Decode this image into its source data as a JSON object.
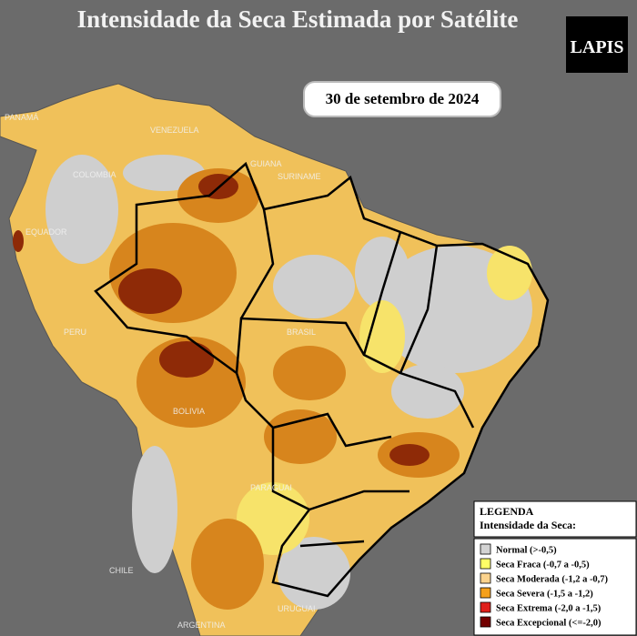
{
  "header": {
    "title": "Intensidade da Seca Estimada por Satélite",
    "date": "30 de setembro de 2024",
    "logo": "LAPIS"
  },
  "map": {
    "labels": [
      "PANAMÁ",
      "VENEZUELA",
      "COLOMBIA",
      "GUIANA",
      "SURINAME",
      "EQUADOR",
      "PERU",
      "BRASIL",
      "BOLIVIA",
      "PARAGUAI",
      "CHILE",
      "URUGUAI",
      "ARGENTINA"
    ]
  },
  "legend": {
    "title": "LEGENDA",
    "subtitle": "Intensidade da Seca:",
    "items": [
      {
        "label": "Normal (>-0,5)",
        "color": "#d3d3d3"
      },
      {
        "label": "Seca Fraca (-0,7 a -0,5)",
        "color": "#ffff66"
      },
      {
        "label": "Seca Moderada (-1,2 a -0,7)",
        "color": "#fcd38d"
      },
      {
        "label": "Seca Severa (-1,5 a -1,2)",
        "color": "#f5a01a"
      },
      {
        "label": "Seca Extrema (-2,0 a -1,5)",
        "color": "#e0201b"
      },
      {
        "label": "Seca Excepcional (<=-2,0)",
        "color": "#730000"
      }
    ]
  }
}
